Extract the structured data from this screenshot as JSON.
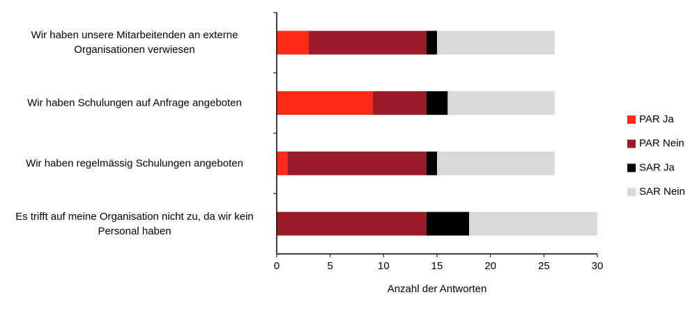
{
  "chart_data": {
    "type": "stacked_bar_horizontal",
    "categories": [
      "Wir haben unsere Mitarbeitenden an externe Organisationen verwiesen",
      "Wir haben Schulungen auf Anfrage angeboten",
      "Wir haben regelmässig Schulungen angeboten",
      "Es trifft auf meine Organisation nicht zu, da wir kein Personal haben"
    ],
    "series": [
      {
        "name": "PAR Ja",
        "color": "#ff2a1a",
        "values": [
          3,
          9,
          1,
          0
        ]
      },
      {
        "name": "PAR Nein",
        "color": "#9b1b2b",
        "values": [
          11,
          5,
          13,
          14
        ]
      },
      {
        "name": "SAR Ja",
        "color": "#000000",
        "values": [
          1,
          2,
          1,
          4
        ]
      },
      {
        "name": "SAR Nein",
        "color": "#d9d9d9",
        "values": [
          11,
          10,
          11,
          12
        ]
      }
    ],
    "xlabel": "Anzahl der Antworten",
    "xlim": [
      0,
      30
    ],
    "xticks": [
      0,
      5,
      10,
      15,
      20,
      25,
      30
    ],
    "legend": "right"
  }
}
